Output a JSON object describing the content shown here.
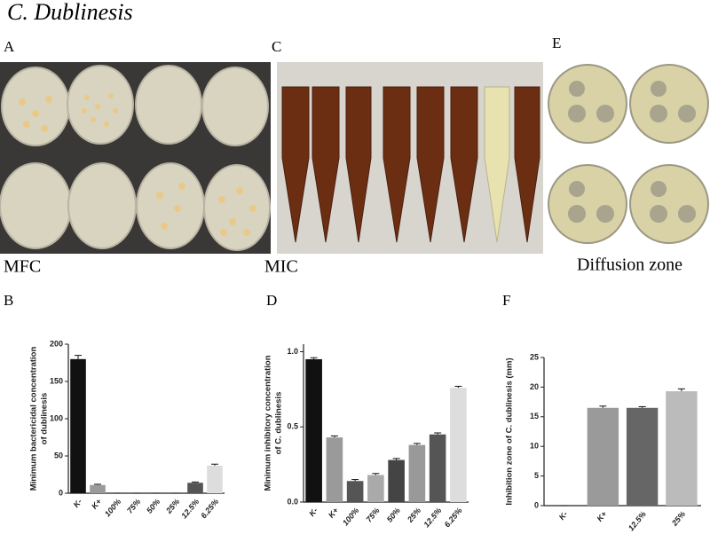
{
  "title": "C. Dublinesis",
  "photo_panels": [
    {
      "letter": "A",
      "caption": "MFC"
    },
    {
      "letter": "C",
      "caption": "MIC"
    },
    {
      "letter": "E",
      "caption": "Diffusion zone"
    }
  ],
  "chart_data": [
    {
      "type": "bar",
      "panel": "B",
      "ylabel": [
        "Minimum bactericidal concentration",
        "of dublinesis"
      ],
      "categories": [
        "K-",
        "K+",
        "100%",
        "75%",
        "50%",
        "25%",
        "12.5%",
        "6.25%"
      ],
      "values": [
        180,
        11,
        0,
        0,
        0,
        0,
        14,
        37
      ],
      "errors": [
        5,
        1,
        0,
        0,
        0,
        0,
        1,
        2
      ],
      "colors": [
        "#111111",
        "#9a9a9a",
        "#777777",
        "#999999",
        "#555555",
        "#999999",
        "#555555",
        "#dddddd"
      ],
      "ylim": [
        0,
        200
      ],
      "yticks": [
        0,
        50,
        100,
        150,
        200
      ]
    },
    {
      "type": "bar",
      "panel": "D",
      "ylabel": [
        "Minimum inhibitory concentration",
        "of C. dublinesis"
      ],
      "categories": [
        "K-",
        "K+",
        "100%",
        "75%",
        "50%",
        "25%",
        "12.5%",
        "6.25%"
      ],
      "values": [
        0.95,
        0.43,
        0.14,
        0.18,
        0.28,
        0.38,
        0.45,
        0.76
      ],
      "errors": [
        0.01,
        0.01,
        0.01,
        0.01,
        0.01,
        0.01,
        0.01,
        0.01
      ],
      "colors": [
        "#111111",
        "#9a9a9a",
        "#555555",
        "#aaaaaa",
        "#444444",
        "#999999",
        "#555555",
        "#dddddd"
      ],
      "ylim": [
        0,
        1.05
      ],
      "yticks": [
        {
          "value": 0,
          "label": "0.0"
        },
        {
          "value": 0.5,
          "label": "0.5"
        },
        {
          "value": 1,
          "label": "1.0"
        }
      ]
    },
    {
      "type": "bar",
      "panel": "F",
      "ylabel": [
        "Inhibition zone of C. dublinesis (mm)"
      ],
      "categories": [
        "K-",
        "K+",
        "12.5%",
        "25%"
      ],
      "values": [
        0,
        16.5,
        16.5,
        19.3
      ],
      "errors": [
        0,
        0.3,
        0.2,
        0.4
      ],
      "colors": [
        "#111111",
        "#9a9a9a",
        "#666666",
        "#bbbbbb"
      ],
      "ylim": [
        0,
        25
      ],
      "yticks": [
        0,
        5,
        10,
        15,
        20,
        25
      ]
    }
  ]
}
